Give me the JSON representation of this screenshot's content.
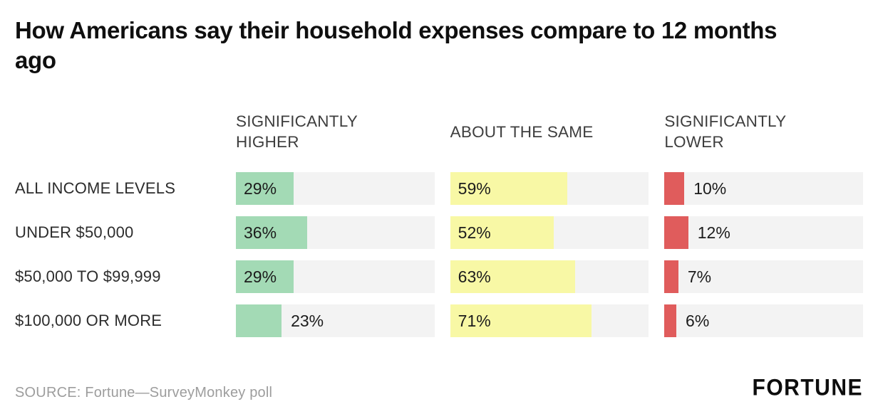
{
  "title": "How Americans say their household expenses compare to 12 months ago",
  "footer": {
    "source": "SOURCE: Fortune—SurveyMonkey poll",
    "logo": "FORTUNE"
  },
  "chart_data": {
    "type": "bar",
    "orientation": "horizontal",
    "title": "How Americans say their household expenses compare to 12 months ago",
    "categories": [
      "ALL INCOME LEVELS",
      "UNDER $50,000",
      "$50,000 TO $99,999",
      "$100,000 OR MORE"
    ],
    "series": [
      {
        "name": "SIGNIFICANTLY HIGHER",
        "color": "#a3dab5",
        "values": [
          29,
          36,
          29,
          23
        ]
      },
      {
        "name": "ABOUT THE SAME",
        "color": "#f8f8a5",
        "values": [
          59,
          52,
          63,
          71
        ]
      },
      {
        "name": "SIGNIFICANTLY LOWER",
        "color": "#e05c5c",
        "values": [
          10,
          12,
          7,
          6
        ]
      }
    ],
    "xlim": [
      0,
      100
    ],
    "value_suffix": "%",
    "track_color": "#f3f3f3",
    "grid": false,
    "legend_position": "column-headers"
  }
}
